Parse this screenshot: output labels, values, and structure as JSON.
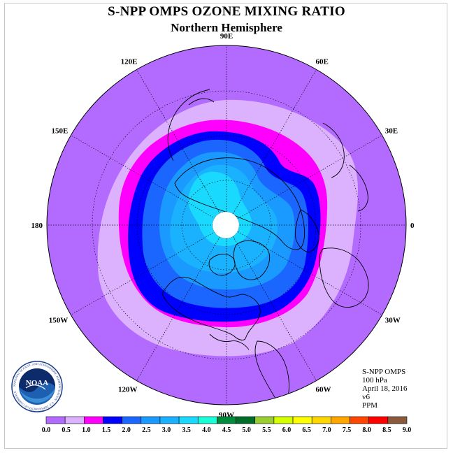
{
  "title": "S-NPP OMPS OZONE MIXING RATIO",
  "subtitle": "Northern Hemisphere",
  "longitude_labels": [
    {
      "text": "90E",
      "deg": 90
    },
    {
      "text": "60E",
      "deg": 60
    },
    {
      "text": "30E",
      "deg": 30
    },
    {
      "text": "0",
      "deg": 0
    },
    {
      "text": "30W",
      "deg": -30
    },
    {
      "text": "60W",
      "deg": -60
    },
    {
      "text": "90W",
      "deg": -90
    },
    {
      "text": "120W",
      "deg": -120
    },
    {
      "text": "150W",
      "deg": -150
    },
    {
      "text": "180",
      "deg": 180
    },
    {
      "text": "150E",
      "deg": 150
    },
    {
      "text": "120E",
      "deg": 120
    }
  ],
  "info": {
    "instrument": "S-NPP OMPS",
    "level": "100 hPa",
    "date": "April 18, 2016",
    "version": "v6",
    "units": "PPM"
  },
  "logo": {
    "text": "NOAA",
    "ring_text": "NATIONAL OCEANIC AND ATMOSPHERIC ADMINISTRATION · U.S. DEPARTMENT OF COMMERCE"
  },
  "colorbar": {
    "ticks": [
      "0.0",
      "0.5",
      "1.0",
      "1.5",
      "2.0",
      "2.5",
      "3.0",
      "3.5",
      "4.0",
      "4.5",
      "5.0",
      "5.5",
      "6.0",
      "6.5",
      "7.0",
      "7.5",
      "8.0",
      "8.5",
      "9.0"
    ],
    "colors": [
      "#b36bff",
      "#dcb2ff",
      "#ff00ff",
      "#0000ff",
      "#1a66ff",
      "#1a99ff",
      "#1ab2ff",
      "#1ad9ff",
      "#1affd9",
      "#008c3c",
      "#006e28",
      "#9acd32",
      "#d4ff00",
      "#ffff00",
      "#ffd700",
      "#ffa500",
      "#ff4500",
      "#ff0000",
      "#8b5a3c"
    ]
  },
  "map_colors": {
    "outer": "#b36bff",
    "light": "#dcb2ff",
    "magenta": "#ff00ff",
    "blue": "#0000ff",
    "mid_blue": "#1a66ff",
    "azure": "#1a99ff",
    "sky": "#1ab2ff",
    "cyan": "#1ad9ff",
    "pole_no_data": "#ffffff"
  }
}
